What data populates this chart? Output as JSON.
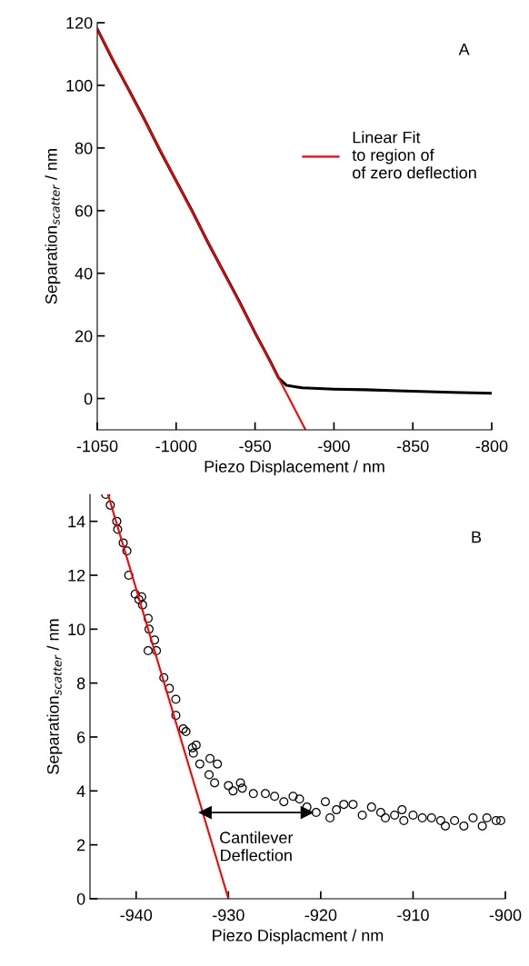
{
  "chart_data": [
    {
      "type": "line",
      "xlabel": "Piezo Displacement / nm",
      "ylabel": "Separation$_{scatter}$ / nm",
      "xlim": [
        -1050,
        -800
      ],
      "xticks": [
        -1050,
        -1000,
        -950,
        -900,
        -850,
        -800
      ],
      "ylim": [
        -10,
        120
      ],
      "yticks": [
        0,
        20,
        40,
        60,
        80,
        100,
        120
      ],
      "grid": false,
      "legend": "top right",
      "annotations": [
        "A"
      ],
      "series": [
        {
          "color": "#000000",
          "x": [
            -1050,
            -1040,
            -1030,
            -1020,
            -1010,
            -1000,
            -990,
            -980,
            -970,
            -960,
            -950,
            -945,
            -940,
            -935,
            -930,
            -925,
            -920,
            -900,
            -880,
            -860,
            -840,
            -820,
            -800
          ],
          "values": [
            118,
            108,
            98.6,
            89,
            79,
            69.5,
            60,
            50,
            40.5,
            31,
            21,
            16.3,
            11.5,
            6.5,
            4.2,
            3.8,
            3.4,
            3.0,
            2.8,
            2.5,
            2.2,
            1.9,
            1.7
          ]
        },
        {
          "name": "Linear Fit\nto region of\nof zero deflection",
          "color": "#ff0000",
          "x": [
            -1050,
            -918
          ],
          "values": [
            118,
            -10
          ]
        }
      ]
    },
    {
      "type": "scatter",
      "xlabel": "Piezo Displacment / nm",
      "ylabel": "Separation$_{scatter}$ / nm",
      "xlim": [
        -945,
        -900
      ],
      "xticks": [
        -940,
        -930,
        -920,
        -910,
        -900
      ],
      "ylim": [
        0,
        15
      ],
      "yticks": [
        0,
        2,
        4,
        6,
        8,
        10,
        12,
        14
      ],
      "grid": false,
      "annotations": [
        "B",
        {
          "text": "Cantilever\nDeflection",
          "x": -927,
          "y": 3.2
        }
      ],
      "series": [
        {
          "color": "#000000",
          "marker": "circle",
          "x": [
            -943.3,
            -942.8,
            -942.1,
            -942.0,
            -941.4,
            -941.0,
            -940.8,
            -940.1,
            -939.7,
            -939.4,
            -939.3,
            -938.7,
            -938.6,
            -938.7,
            -938.0,
            -937.8,
            -937.0,
            -936.4,
            -935.7,
            -935.7,
            -934.9,
            -934.6,
            -933.9,
            -933.5,
            -933.8,
            -933.1,
            -932.0,
            -931.2,
            -932.1,
            -931.5,
            -930.0,
            -929.5,
            -928.7,
            -928.5,
            -927.3,
            -926.0,
            -925.0,
            -924.0,
            -923.0,
            -922.3,
            -921.5,
            -920.5,
            -919.5,
            -919.0,
            -918.3,
            -917.5,
            -916.5,
            -915.5,
            -914.5,
            -913.5,
            -913.0,
            -912.0,
            -911.2,
            -911.0,
            -910.0,
            -909.0,
            -908.0,
            -907.0,
            -906.5,
            -905.5,
            -904.5,
            -903.5,
            -902.5,
            -902.0,
            -901.0,
            -900.5
          ],
          "values": [
            15.0,
            14.6,
            14.0,
            13.7,
            13.2,
            12.9,
            12.0,
            11.3,
            11.1,
            11.2,
            10.9,
            10.4,
            10.0,
            9.2,
            9.6,
            9.2,
            8.2,
            7.8,
            7.4,
            6.8,
            6.3,
            6.2,
            5.6,
            5.7,
            5.4,
            5.0,
            5.2,
            5.0,
            4.6,
            4.3,
            4.2,
            4.0,
            4.3,
            4.1,
            3.9,
            3.9,
            3.8,
            3.6,
            3.8,
            3.7,
            3.4,
            3.2,
            3.6,
            3.0,
            3.3,
            3.5,
            3.5,
            3.1,
            3.4,
            3.2,
            3.0,
            3.1,
            3.3,
            2.9,
            3.1,
            3.0,
            3.0,
            2.9,
            2.7,
            2.9,
            2.7,
            3.0,
            2.7,
            3.0,
            2.9,
            2.9
          ]
        },
        {
          "type": "line",
          "color": "#ff0000",
          "x": [
            -943.05,
            -930
          ],
          "values": [
            15,
            0
          ]
        },
        {
          "type": "line",
          "color": "#000000",
          "marker": "triangle",
          "x": [
            -932.5,
            -921.5
          ],
          "values": [
            3.2,
            3.2
          ]
        }
      ]
    }
  ]
}
